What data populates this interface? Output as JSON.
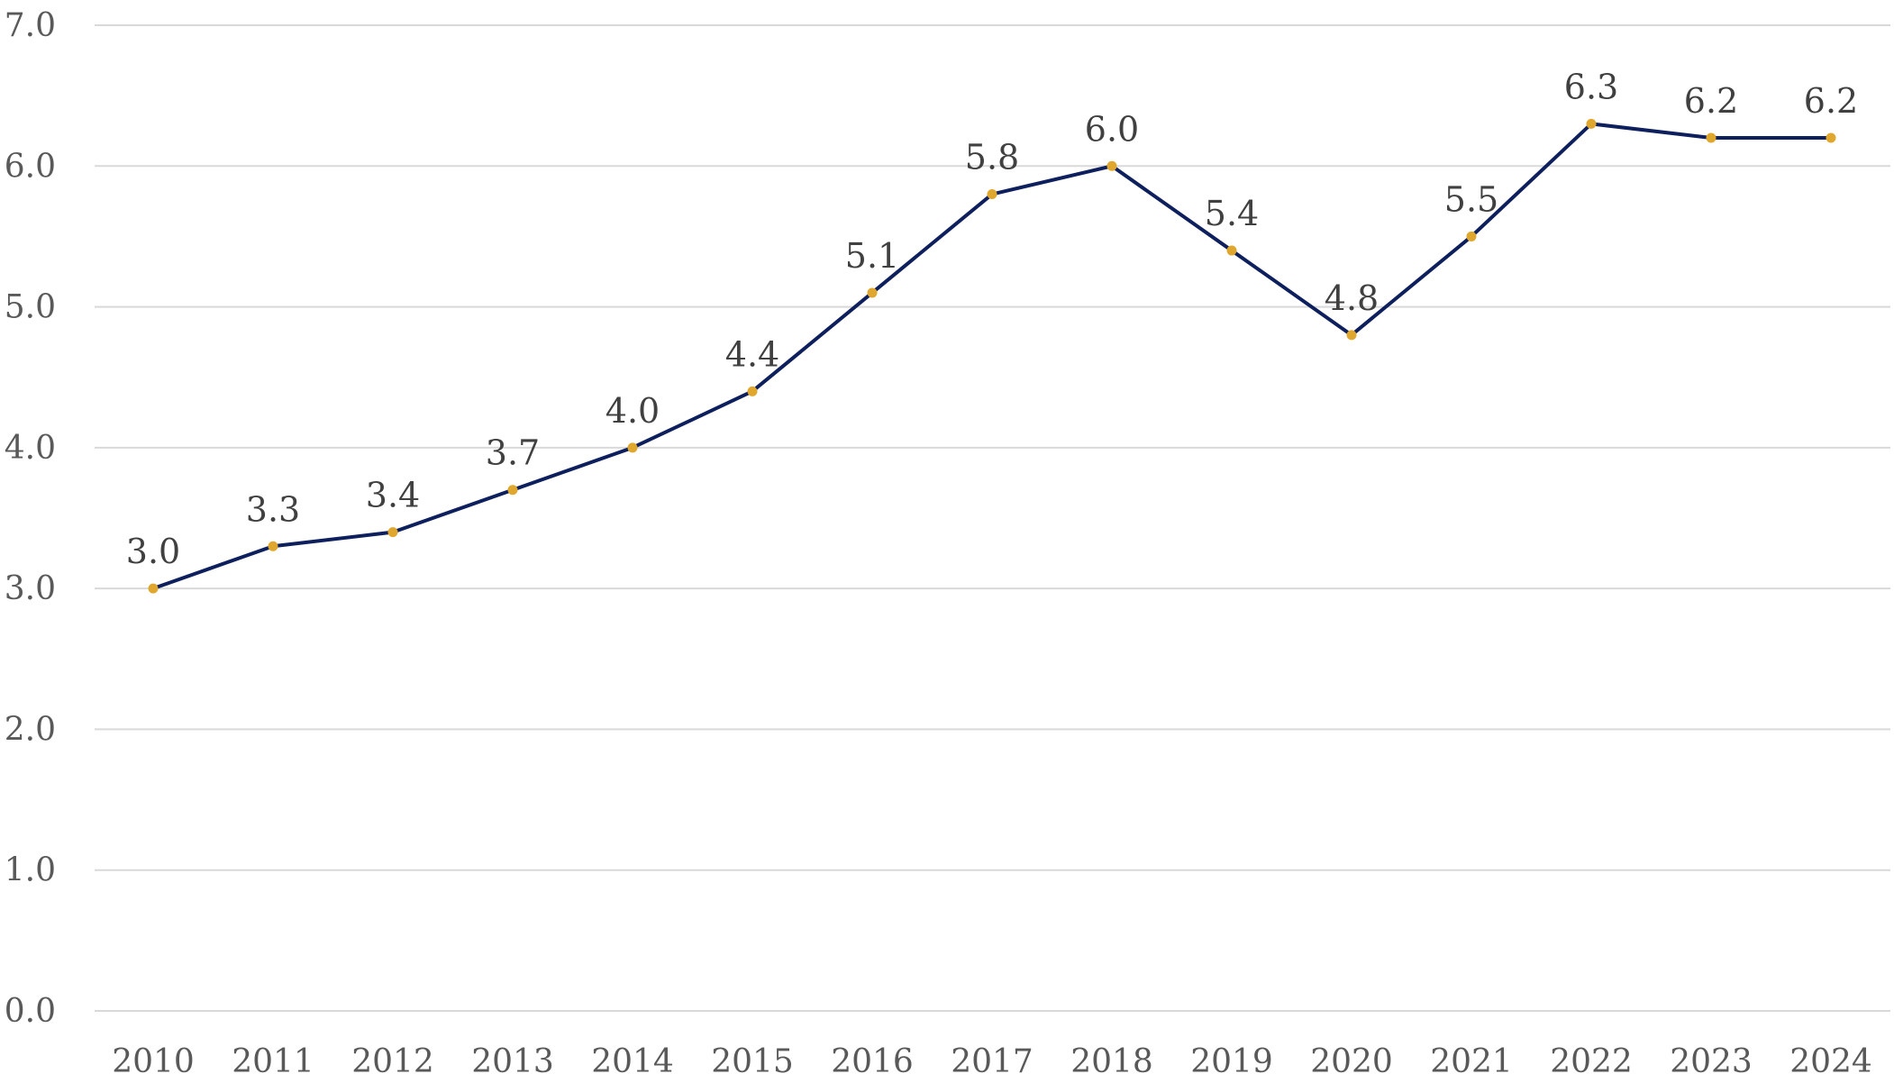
{
  "chart_data": {
    "type": "line",
    "title": "",
    "xlabel": "",
    "ylabel": "",
    "categories": [
      "2010",
      "2011",
      "2012",
      "2013",
      "2014",
      "2015",
      "2016",
      "2017",
      "2018",
      "2019",
      "2020",
      "2021",
      "2022",
      "2023",
      "2024"
    ],
    "series": [
      {
        "values": [
          3.0,
          3.3,
          3.4,
          3.7,
          4.0,
          4.4,
          5.1,
          5.8,
          6.0,
          5.4,
          4.8,
          5.5,
          6.3,
          6.2,
          6.2
        ],
        "data_labels": [
          "3.0",
          "3.3",
          "3.4",
          "3.7",
          "4.0",
          "4.4",
          "5.1",
          "5.8",
          "6.0",
          "5.4",
          "4.8",
          "5.5",
          "6.3",
          "6.2",
          "6.2"
        ],
        "line_color": "#0d1f5c",
        "marker_color": "#e0a72e"
      }
    ],
    "ylim": [
      0,
      7
    ],
    "y_ticks": [
      "0.0",
      "1.0",
      "2.0",
      "3.0",
      "4.0",
      "5.0",
      "6.0",
      "7.0"
    ],
    "grid": "horizontal",
    "legend": "none"
  }
}
